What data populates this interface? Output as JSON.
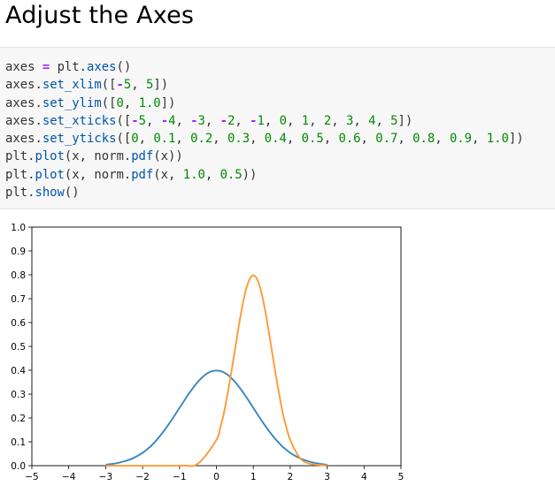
{
  "heading": "Adjust the Axes",
  "code_lines": [
    [
      {
        "t": "axes ",
        "c": "plain"
      },
      {
        "t": "=",
        "c": "op"
      },
      {
        "t": " plt.",
        "c": "plain"
      },
      {
        "t": "axes",
        "c": "fn"
      },
      {
        "t": "()",
        "c": "plain"
      }
    ],
    [
      {
        "t": "axes.",
        "c": "plain"
      },
      {
        "t": "set_xlim",
        "c": "fn"
      },
      {
        "t": "([",
        "c": "plain"
      },
      {
        "t": "-",
        "c": "op"
      },
      {
        "t": "5",
        "c": "num"
      },
      {
        "t": ", ",
        "c": "plain"
      },
      {
        "t": "5",
        "c": "num"
      },
      {
        "t": "])",
        "c": "plain"
      }
    ],
    [
      {
        "t": "axes.",
        "c": "plain"
      },
      {
        "t": "set_ylim",
        "c": "fn"
      },
      {
        "t": "([",
        "c": "plain"
      },
      {
        "t": "0",
        "c": "num"
      },
      {
        "t": ", ",
        "c": "plain"
      },
      {
        "t": "1.0",
        "c": "num"
      },
      {
        "t": "])",
        "c": "plain"
      }
    ],
    [
      {
        "t": "axes.",
        "c": "plain"
      },
      {
        "t": "set_xticks",
        "c": "fn"
      },
      {
        "t": "([",
        "c": "plain"
      },
      {
        "t": "-",
        "c": "op"
      },
      {
        "t": "5",
        "c": "num"
      },
      {
        "t": ", ",
        "c": "plain"
      },
      {
        "t": "-",
        "c": "op"
      },
      {
        "t": "4",
        "c": "num"
      },
      {
        "t": ", ",
        "c": "plain"
      },
      {
        "t": "-",
        "c": "op"
      },
      {
        "t": "3",
        "c": "num"
      },
      {
        "t": ", ",
        "c": "plain"
      },
      {
        "t": "-",
        "c": "op"
      },
      {
        "t": "2",
        "c": "num"
      },
      {
        "t": ", ",
        "c": "plain"
      },
      {
        "t": "-",
        "c": "op"
      },
      {
        "t": "1",
        "c": "num"
      },
      {
        "t": ", ",
        "c": "plain"
      },
      {
        "t": "0",
        "c": "num"
      },
      {
        "t": ", ",
        "c": "plain"
      },
      {
        "t": "1",
        "c": "num"
      },
      {
        "t": ", ",
        "c": "plain"
      },
      {
        "t": "2",
        "c": "num"
      },
      {
        "t": ", ",
        "c": "plain"
      },
      {
        "t": "3",
        "c": "num"
      },
      {
        "t": ", ",
        "c": "plain"
      },
      {
        "t": "4",
        "c": "num"
      },
      {
        "t": ", ",
        "c": "plain"
      },
      {
        "t": "5",
        "c": "num"
      },
      {
        "t": "])",
        "c": "plain"
      }
    ],
    [
      {
        "t": "axes.",
        "c": "plain"
      },
      {
        "t": "set_yticks",
        "c": "fn"
      },
      {
        "t": "([",
        "c": "plain"
      },
      {
        "t": "0",
        "c": "num"
      },
      {
        "t": ", ",
        "c": "plain"
      },
      {
        "t": "0.1",
        "c": "num"
      },
      {
        "t": ", ",
        "c": "plain"
      },
      {
        "t": "0.2",
        "c": "num"
      },
      {
        "t": ", ",
        "c": "plain"
      },
      {
        "t": "0.3",
        "c": "num"
      },
      {
        "t": ", ",
        "c": "plain"
      },
      {
        "t": "0.4",
        "c": "num"
      },
      {
        "t": ", ",
        "c": "plain"
      },
      {
        "t": "0.5",
        "c": "num"
      },
      {
        "t": ", ",
        "c": "plain"
      },
      {
        "t": "0.6",
        "c": "num"
      },
      {
        "t": ", ",
        "c": "plain"
      },
      {
        "t": "0.7",
        "c": "num"
      },
      {
        "t": ", ",
        "c": "plain"
      },
      {
        "t": "0.8",
        "c": "num"
      },
      {
        "t": ", ",
        "c": "plain"
      },
      {
        "t": "0.9",
        "c": "num"
      },
      {
        "t": ", ",
        "c": "plain"
      },
      {
        "t": "1.0",
        "c": "num"
      },
      {
        "t": "])",
        "c": "plain"
      }
    ],
    [
      {
        "t": "plt.",
        "c": "plain"
      },
      {
        "t": "plot",
        "c": "fn"
      },
      {
        "t": "(x, norm.",
        "c": "plain"
      },
      {
        "t": "pdf",
        "c": "fn"
      },
      {
        "t": "(x))",
        "c": "plain"
      }
    ],
    [
      {
        "t": "plt.",
        "c": "plain"
      },
      {
        "t": "plot",
        "c": "fn"
      },
      {
        "t": "(x, norm.",
        "c": "plain"
      },
      {
        "t": "pdf",
        "c": "fn"
      },
      {
        "t": "(x, ",
        "c": "plain"
      },
      {
        "t": "1.0",
        "c": "num"
      },
      {
        "t": ", ",
        "c": "plain"
      },
      {
        "t": "0.5",
        "c": "num"
      },
      {
        "t": "))",
        "c": "plain"
      }
    ],
    [
      {
        "t": "plt.",
        "c": "plain"
      },
      {
        "t": "show",
        "c": "fn"
      },
      {
        "t": "()",
        "c": "plain"
      }
    ]
  ],
  "colors": {
    "series_1": "#3a87bd",
    "series_2": "#ff9a36"
  },
  "chart_data": {
    "type": "line",
    "title": "",
    "xlabel": "",
    "ylabel": "",
    "xlim": [
      -5,
      5
    ],
    "ylim": [
      0,
      1.0
    ],
    "xticks": [
      "-5",
      "-4",
      "-3",
      "-2",
      "-1",
      "0",
      "1",
      "2",
      "3",
      "4",
      "5"
    ],
    "yticks": [
      "0.0",
      "0.1",
      "0.2",
      "0.3",
      "0.4",
      "0.5",
      "0.6",
      "0.7",
      "0.8",
      "0.9",
      "1.0"
    ],
    "grid": false,
    "legend": "none",
    "series": [
      {
        "x": [
          -3,
          -2.75,
          -2.5,
          -2.25,
          -2,
          -1.75,
          -1.5,
          -1.25,
          -1,
          -0.75,
          -0.5,
          -0.25,
          0,
          0.25,
          0.5,
          0.75,
          1,
          1.25,
          1.5,
          1.75,
          2,
          2.25,
          2.5,
          2.75,
          3
        ],
        "values": [
          0.004,
          0.009,
          0.018,
          0.032,
          0.054,
          0.086,
          0.13,
          0.183,
          0.242,
          0.301,
          0.352,
          0.387,
          0.399,
          0.387,
          0.352,
          0.301,
          0.242,
          0.183,
          0.13,
          0.086,
          0.054,
          0.032,
          0.018,
          0.009,
          0.004
        ]
      },
      {
        "x": [
          -3,
          -1,
          -0.5,
          0,
          0.1,
          0.2,
          0.3,
          0.4,
          0.5,
          0.6,
          0.7,
          0.8,
          0.9,
          1,
          1.1,
          1.2,
          1.3,
          1.4,
          1.5,
          1.6,
          1.7,
          1.8,
          1.9,
          2,
          2.25,
          2.5,
          3
        ],
        "values": [
          0,
          0.0003,
          0.009,
          0.108,
          0.158,
          0.218,
          0.299,
          0.388,
          0.484,
          0.579,
          0.667,
          0.737,
          0.782,
          0.798,
          0.782,
          0.737,
          0.667,
          0.579,
          0.484,
          0.388,
          0.299,
          0.218,
          0.158,
          0.108,
          0.035,
          0.009,
          0.0001
        ]
      }
    ]
  }
}
